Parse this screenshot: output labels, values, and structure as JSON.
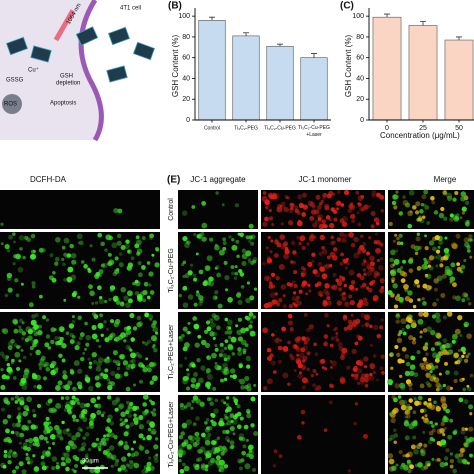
{
  "schematic": {
    "cell": "4T1 cell",
    "laser": "1064 nm",
    "cu": "Cu⁺",
    "gsh": "GSH",
    "depletion": "depletion",
    "gssg": "GSSG",
    "ros": "ROS",
    "apoptosis": "Apoptosis"
  },
  "chart_data": [
    {
      "type": "bar",
      "panel": "(B)",
      "y_label": "GSH Content (%)",
      "categories": [
        "Control",
        "Ti₃C₂-PEG",
        "Ti₃C₂-Cu-PEG",
        "Ti₃C₂-Cu-PEG+Laser"
      ],
      "values": [
        96,
        81,
        71,
        60
      ],
      "errors": [
        3,
        3,
        2,
        4
      ],
      "color": "#c6dbf0",
      "ylim": [
        0,
        104
      ],
      "yticks": [
        0,
        20,
        40,
        60,
        80,
        100
      ]
    },
    {
      "type": "bar",
      "panel": "(C)",
      "y_label": "GSH Content (%)",
      "x_label": "Concentration (μg/mL)",
      "categories": [
        "0",
        "25",
        "50"
      ],
      "values": [
        99,
        91,
        77
      ],
      "errors": [
        3,
        4,
        3
      ],
      "color": "#fad5c4",
      "ylim": [
        0,
        104
      ],
      "yticks": [
        0,
        20,
        40,
        60,
        80,
        100
      ]
    }
  ],
  "panel_d": {
    "label": "DCFH-DA",
    "scale_bar": "30 μm"
  },
  "panel_e": {
    "label": "(E)",
    "columns": [
      "JC-1 aggregate",
      "JC-1 monomer",
      "Merge"
    ],
    "rows": [
      "Control",
      "Ti₃C₂-Cu-PEG",
      "Ti₃C₂-PEG+Laser",
      "Ti₃C₂-Cu-PEG+Laser"
    ]
  }
}
